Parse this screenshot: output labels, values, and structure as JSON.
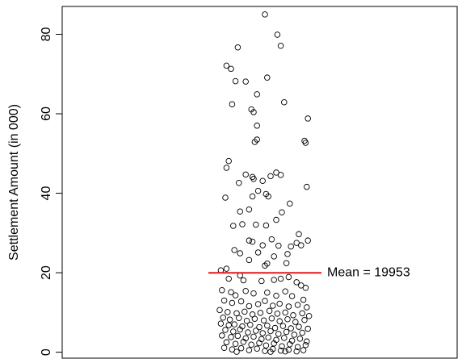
{
  "chart_data": {
    "type": "scatter",
    "title": "",
    "xlabel": "",
    "ylabel": "Settlement Amount (in 000)",
    "ylim": [
      -1.5,
      87
    ],
    "yticks": [
      0,
      20,
      40,
      60,
      80
    ],
    "grid": false,
    "reference_line": {
      "value": 19.953,
      "label": "Mean = 19953",
      "color": "#e31a1c"
    },
    "points": [
      [
        0.5,
        85.0
      ],
      [
        0.61,
        79.9
      ],
      [
        0.64,
        77.1
      ],
      [
        0.16,
        72.1
      ],
      [
        0.26,
        76.7
      ],
      [
        0.2,
        71.3
      ],
      [
        0.52,
        69.1
      ],
      [
        0.24,
        68.2
      ],
      [
        0.33,
        68.1
      ],
      [
        0.43,
        64.9
      ],
      [
        0.21,
        62.4
      ],
      [
        0.67,
        62.9
      ],
      [
        0.38,
        61.1
      ],
      [
        0.4,
        60.4
      ],
      [
        0.88,
        58.8
      ],
      [
        0.43,
        57.0
      ],
      [
        0.85,
        53.2
      ],
      [
        0.86,
        52.7
      ],
      [
        0.43,
        53.5
      ],
      [
        0.41,
        52.9
      ],
      [
        0.18,
        48.1
      ],
      [
        0.16,
        46.4
      ],
      [
        0.33,
        44.7
      ],
      [
        0.39,
        44.1
      ],
      [
        0.4,
        43.6
      ],
      [
        0.55,
        44.3
      ],
      [
        0.6,
        45.2
      ],
      [
        0.64,
        44.6
      ],
      [
        0.27,
        42.6
      ],
      [
        0.48,
        43.1
      ],
      [
        0.87,
        41.6
      ],
      [
        0.39,
        39.2
      ],
      [
        0.15,
        38.9
      ],
      [
        0.44,
        40.6
      ],
      [
        0.51,
        39.8
      ],
      [
        0.53,
        39.2
      ],
      [
        0.36,
        35.9
      ],
      [
        0.28,
        35.4
      ],
      [
        0.72,
        37.4
      ],
      [
        0.65,
        35.2
      ],
      [
        0.6,
        33.3
      ],
      [
        0.42,
        32.1
      ],
      [
        0.22,
        31.8
      ],
      [
        0.3,
        32.2
      ],
      [
        0.51,
        31.9
      ],
      [
        0.8,
        29.7
      ],
      [
        0.88,
        28.1
      ],
      [
        0.56,
        28.4
      ],
      [
        0.36,
        28.1
      ],
      [
        0.39,
        27.8
      ],
      [
        0.78,
        27.5
      ],
      [
        0.82,
        26.9
      ],
      [
        0.62,
        26.8
      ],
      [
        0.73,
        26.6
      ],
      [
        0.48,
        26.9
      ],
      [
        0.44,
        25.1
      ],
      [
        0.23,
        25.7
      ],
      [
        0.28,
        24.9
      ],
      [
        0.16,
        21.0
      ],
      [
        0.11,
        20.6
      ],
      [
        0.36,
        23.2
      ],
      [
        0.52,
        22.3
      ],
      [
        0.5,
        21.8
      ],
      [
        0.69,
        22.4
      ],
      [
        0.7,
        24.7
      ],
      [
        0.58,
        24.1
      ],
      [
        0.18,
        18.5
      ],
      [
        0.28,
        19.3
      ],
      [
        0.31,
        18.1
      ],
      [
        0.47,
        17.9
      ],
      [
        0.58,
        18.2
      ],
      [
        0.64,
        18.5
      ],
      [
        0.71,
        18.9
      ],
      [
        0.78,
        17.6
      ],
      [
        0.82,
        16.8
      ],
      [
        0.86,
        16.2
      ],
      [
        0.12,
        15.6
      ],
      [
        0.2,
        15.1
      ],
      [
        0.24,
        14.3
      ],
      [
        0.33,
        15.4
      ],
      [
        0.4,
        14.8
      ],
      [
        0.52,
        15.0
      ],
      [
        0.6,
        14.2
      ],
      [
        0.68,
        15.3
      ],
      [
        0.74,
        14.1
      ],
      [
        0.84,
        13.2
      ],
      [
        0.14,
        13.0
      ],
      [
        0.21,
        12.4
      ],
      [
        0.29,
        12.8
      ],
      [
        0.36,
        11.6
      ],
      [
        0.44,
        12.1
      ],
      [
        0.5,
        12.9
      ],
      [
        0.57,
        11.7
      ],
      [
        0.63,
        12.2
      ],
      [
        0.71,
        11.5
      ],
      [
        0.79,
        11.9
      ],
      [
        0.87,
        11.3
      ],
      [
        0.1,
        10.6
      ],
      [
        0.17,
        10.1
      ],
      [
        0.25,
        9.8
      ],
      [
        0.32,
        10.2
      ],
      [
        0.39,
        9.5
      ],
      [
        0.46,
        9.9
      ],
      [
        0.54,
        10.4
      ],
      [
        0.61,
        9.7
      ],
      [
        0.68,
        10.0
      ],
      [
        0.75,
        9.3
      ],
      [
        0.83,
        9.8
      ],
      [
        0.89,
        9.1
      ],
      [
        0.13,
        8.7
      ],
      [
        0.19,
        8.2
      ],
      [
        0.27,
        8.6
      ],
      [
        0.34,
        7.9
      ],
      [
        0.41,
        8.4
      ],
      [
        0.49,
        8.0
      ],
      [
        0.56,
        8.5
      ],
      [
        0.63,
        7.8
      ],
      [
        0.7,
        8.3
      ],
      [
        0.77,
        7.6
      ],
      [
        0.85,
        8.1
      ],
      [
        0.11,
        7.2
      ],
      [
        0.18,
        6.8
      ],
      [
        0.23,
        7.0
      ],
      [
        0.3,
        6.5
      ],
      [
        0.37,
        6.9
      ],
      [
        0.45,
        6.3
      ],
      [
        0.52,
        6.7
      ],
      [
        0.59,
        6.1
      ],
      [
        0.66,
        6.6
      ],
      [
        0.73,
        6.0
      ],
      [
        0.8,
        6.4
      ],
      [
        0.88,
        5.9
      ],
      [
        0.15,
        5.6
      ],
      [
        0.22,
        5.2
      ],
      [
        0.28,
        5.7
      ],
      [
        0.35,
        5.0
      ],
      [
        0.42,
        5.4
      ],
      [
        0.48,
        4.8
      ],
      [
        0.55,
        5.3
      ],
      [
        0.62,
        4.6
      ],
      [
        0.69,
        5.1
      ],
      [
        0.76,
        4.4
      ],
      [
        0.83,
        4.9
      ],
      [
        0.12,
        4.2
      ],
      [
        0.2,
        3.8
      ],
      [
        0.26,
        4.1
      ],
      [
        0.33,
        3.5
      ],
      [
        0.4,
        3.9
      ],
      [
        0.47,
        3.3
      ],
      [
        0.53,
        3.7
      ],
      [
        0.6,
        3.1
      ],
      [
        0.67,
        3.6
      ],
      [
        0.74,
        2.9
      ],
      [
        0.81,
        3.4
      ],
      [
        0.87,
        2.7
      ],
      [
        0.16,
        2.5
      ],
      [
        0.24,
        2.1
      ],
      [
        0.31,
        2.6
      ],
      [
        0.38,
        1.9
      ],
      [
        0.45,
        2.3
      ],
      [
        0.51,
        1.7
      ],
      [
        0.58,
        2.2
      ],
      [
        0.65,
        1.5
      ],
      [
        0.72,
        2.0
      ],
      [
        0.79,
        1.3
      ],
      [
        0.86,
        1.8
      ],
      [
        0.14,
        1.1
      ],
      [
        0.21,
        0.7
      ],
      [
        0.29,
        1.0
      ],
      [
        0.36,
        0.5
      ],
      [
        0.43,
        0.9
      ],
      [
        0.5,
        0.3
      ],
      [
        0.57,
        0.8
      ],
      [
        0.64,
        0.4
      ],
      [
        0.71,
        0.6
      ],
      [
        0.78,
        0.2
      ],
      [
        0.84,
        0.5
      ],
      [
        0.25,
        0.1
      ],
      [
        0.55,
        0.1
      ],
      [
        0.68,
        0.2
      ]
    ]
  }
}
